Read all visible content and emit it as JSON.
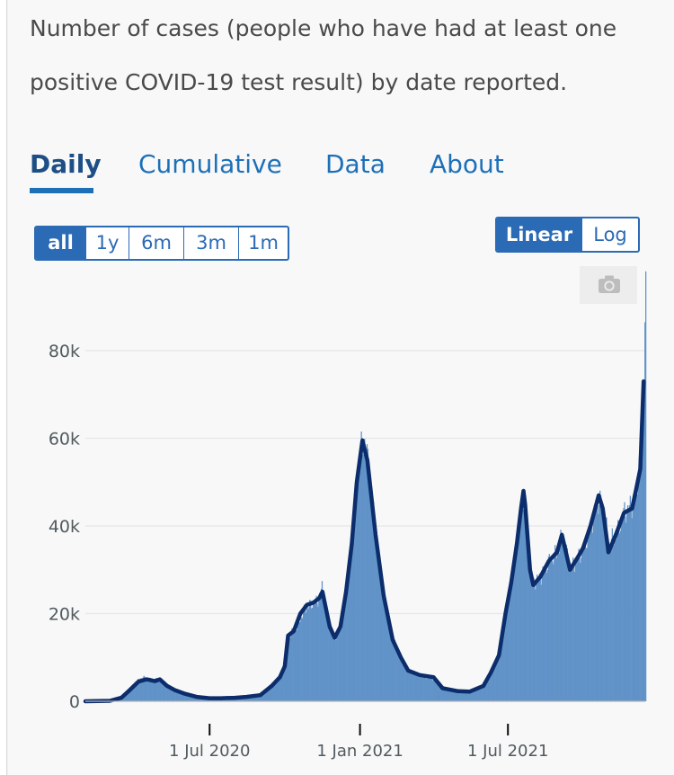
{
  "description": "Number of cases (people who have had at least one positive COVID-19 test result) by date reported.",
  "tabs": [
    {
      "label": "Daily",
      "active": true
    },
    {
      "label": "Cumulative",
      "active": false
    },
    {
      "label": "Data",
      "active": false
    },
    {
      "label": "About",
      "active": false
    }
  ],
  "range_buttons": [
    {
      "label": "all",
      "active": true
    },
    {
      "label": "1y",
      "active": false
    },
    {
      "label": "6m",
      "active": false
    },
    {
      "label": "3m",
      "active": false
    },
    {
      "label": "1m",
      "active": false
    }
  ],
  "scale_buttons": [
    {
      "label": "Linear",
      "active": true
    },
    {
      "label": "Log",
      "active": false
    }
  ],
  "camera_icon": "camera-icon",
  "colors": {
    "bars": "#6193c8",
    "bar_spikes": "#4b7fbc",
    "average_line": "#0c2d6b",
    "accent": "#1d70b8",
    "grid": "#e6e6e6",
    "axis_text": "#505a5f"
  },
  "chart_data": {
    "type": "bar",
    "title": "",
    "xlabel": "",
    "ylabel": "",
    "ylim": [
      0,
      95000
    ],
    "yticks": [
      0,
      20000,
      40000,
      60000,
      80000
    ],
    "ytick_labels": [
      "0",
      "20k",
      "40k",
      "60k",
      "80k"
    ],
    "xlim": [
      "2020-01-31",
      "2021-12-16"
    ],
    "xticks": [
      "2020-07-01",
      "2021-01-01",
      "2021-07-01"
    ],
    "xtick_labels": [
      "1 Jul 2020",
      "1 Jan 2021",
      "1 Jul 2021"
    ],
    "grid": true,
    "series": [
      {
        "kind": "daily_bars",
        "points": [
          [
            "2020-01-31",
            0
          ],
          [
            "2020-03-01",
            200
          ],
          [
            "2020-03-15",
            1200
          ],
          [
            "2020-03-25",
            3000
          ],
          [
            "2020-04-01",
            4500
          ],
          [
            "2020-04-10",
            5500
          ],
          [
            "2020-04-20",
            5000
          ],
          [
            "2020-04-30",
            5000
          ],
          [
            "2020-05-10",
            3500
          ],
          [
            "2020-05-20",
            2500
          ],
          [
            "2020-06-01",
            1800
          ],
          [
            "2020-06-15",
            1200
          ],
          [
            "2020-07-01",
            700
          ],
          [
            "2020-07-15",
            700
          ],
          [
            "2020-08-01",
            800
          ],
          [
            "2020-08-15",
            1100
          ],
          [
            "2020-09-01",
            1400
          ],
          [
            "2020-09-15",
            3500
          ],
          [
            "2020-09-25",
            6000
          ],
          [
            "2020-10-01",
            8000
          ],
          [
            "2020-10-05",
            15000
          ],
          [
            "2020-10-15",
            17000
          ],
          [
            "2020-10-25",
            21000
          ],
          [
            "2020-11-01",
            22000
          ],
          [
            "2020-11-10",
            23000
          ],
          [
            "2020-11-15",
            26000
          ],
          [
            "2020-11-25",
            17000
          ],
          [
            "2020-12-01",
            14500
          ],
          [
            "2020-12-10",
            18000
          ],
          [
            "2020-12-15",
            25000
          ],
          [
            "2020-12-22",
            36000
          ],
          [
            "2020-12-28",
            50000
          ],
          [
            "2021-01-01",
            57000
          ],
          [
            "2021-01-05",
            60000
          ],
          [
            "2021-01-10",
            55000
          ],
          [
            "2021-01-20",
            38000
          ],
          [
            "2021-01-30",
            24000
          ],
          [
            "2021-02-10",
            14000
          ],
          [
            "2021-02-20",
            10000
          ],
          [
            "2021-03-01",
            7000
          ],
          [
            "2021-03-15",
            5800
          ],
          [
            "2021-04-01",
            5000
          ],
          [
            "2021-04-15",
            3000
          ],
          [
            "2021-05-01",
            2300
          ],
          [
            "2021-05-15",
            2200
          ],
          [
            "2021-06-01",
            3500
          ],
          [
            "2021-06-10",
            6500
          ],
          [
            "2021-06-20",
            10500
          ],
          [
            "2021-06-28",
            20000
          ],
          [
            "2021-07-05",
            27000
          ],
          [
            "2021-07-12",
            36000
          ],
          [
            "2021-07-17",
            44000
          ],
          [
            "2021-07-20",
            48000
          ],
          [
            "2021-07-22",
            45000
          ],
          [
            "2021-07-28",
            30000
          ],
          [
            "2021-08-01",
            27000
          ],
          [
            "2021-08-10",
            28500
          ],
          [
            "2021-08-20",
            32000
          ],
          [
            "2021-08-30",
            34000
          ],
          [
            "2021-09-05",
            38000
          ],
          [
            "2021-09-15",
            30000
          ],
          [
            "2021-09-25",
            33000
          ],
          [
            "2021-10-01",
            35000
          ],
          [
            "2021-10-10",
            40000
          ],
          [
            "2021-10-20",
            46000
          ],
          [
            "2021-10-25",
            44000
          ],
          [
            "2021-11-01",
            36000
          ],
          [
            "2021-11-10",
            38000
          ],
          [
            "2021-11-20",
            43000
          ],
          [
            "2021-11-30",
            45000
          ],
          [
            "2021-12-05",
            48000
          ],
          [
            "2021-12-10",
            58000
          ],
          [
            "2021-12-14",
            78000
          ],
          [
            "2021-12-16",
            93000
          ]
        ]
      },
      {
        "kind": "rolling_average_line",
        "points": [
          [
            "2020-01-31",
            0
          ],
          [
            "2020-03-01",
            100
          ],
          [
            "2020-03-15",
            800
          ],
          [
            "2020-03-25",
            2500
          ],
          [
            "2020-04-05",
            4500
          ],
          [
            "2020-04-15",
            5000
          ],
          [
            "2020-04-25",
            4600
          ],
          [
            "2020-05-01",
            5000
          ],
          [
            "2020-05-10",
            3500
          ],
          [
            "2020-05-20",
            2500
          ],
          [
            "2020-06-01",
            1700
          ],
          [
            "2020-06-15",
            1000
          ],
          [
            "2020-07-01",
            700
          ],
          [
            "2020-07-15",
            700
          ],
          [
            "2020-08-01",
            800
          ],
          [
            "2020-08-15",
            1000
          ],
          [
            "2020-09-01",
            1400
          ],
          [
            "2020-09-15",
            3500
          ],
          [
            "2020-09-25",
            5500
          ],
          [
            "2020-10-01",
            8000
          ],
          [
            "2020-10-05",
            15000
          ],
          [
            "2020-10-12",
            16000
          ],
          [
            "2020-10-20",
            20000
          ],
          [
            "2020-10-28",
            22000
          ],
          [
            "2020-11-05",
            22500
          ],
          [
            "2020-11-12",
            23500
          ],
          [
            "2020-11-16",
            25000
          ],
          [
            "2020-11-25",
            17000
          ],
          [
            "2020-12-01",
            14500
          ],
          [
            "2020-12-08",
            17000
          ],
          [
            "2020-12-15",
            25000
          ],
          [
            "2020-12-22",
            36000
          ],
          [
            "2020-12-28",
            50000
          ],
          [
            "2021-01-04",
            59500
          ],
          [
            "2021-01-10",
            55000
          ],
          [
            "2021-01-20",
            38000
          ],
          [
            "2021-01-30",
            24000
          ],
          [
            "2021-02-10",
            14000
          ],
          [
            "2021-02-20",
            10000
          ],
          [
            "2021-03-01",
            7000
          ],
          [
            "2021-03-15",
            6000
          ],
          [
            "2021-04-01",
            5500
          ],
          [
            "2021-04-12",
            3000
          ],
          [
            "2021-05-01",
            2300
          ],
          [
            "2021-05-15",
            2200
          ],
          [
            "2021-06-01",
            3500
          ],
          [
            "2021-06-10",
            6500
          ],
          [
            "2021-06-20",
            10500
          ],
          [
            "2021-06-28",
            20000
          ],
          [
            "2021-07-05",
            27000
          ],
          [
            "2021-07-12",
            36000
          ],
          [
            "2021-07-17",
            44000
          ],
          [
            "2021-07-20",
            48000
          ],
          [
            "2021-07-22",
            45000
          ],
          [
            "2021-07-28",
            30000
          ],
          [
            "2021-08-01",
            26500
          ],
          [
            "2021-08-10",
            28500
          ],
          [
            "2021-08-20",
            32000
          ],
          [
            "2021-08-30",
            34000
          ],
          [
            "2021-09-05",
            38000
          ],
          [
            "2021-09-15",
            30000
          ],
          [
            "2021-09-25",
            33000
          ],
          [
            "2021-10-01",
            35000
          ],
          [
            "2021-10-10",
            40000
          ],
          [
            "2021-10-20",
            47000
          ],
          [
            "2021-10-25",
            44000
          ],
          [
            "2021-11-01",
            34000
          ],
          [
            "2021-11-10",
            38000
          ],
          [
            "2021-11-20",
            43000
          ],
          [
            "2021-11-30",
            44000
          ],
          [
            "2021-12-05",
            48500
          ],
          [
            "2021-12-10",
            53000
          ],
          [
            "2021-12-14",
            73000
          ]
        ]
      }
    ]
  }
}
